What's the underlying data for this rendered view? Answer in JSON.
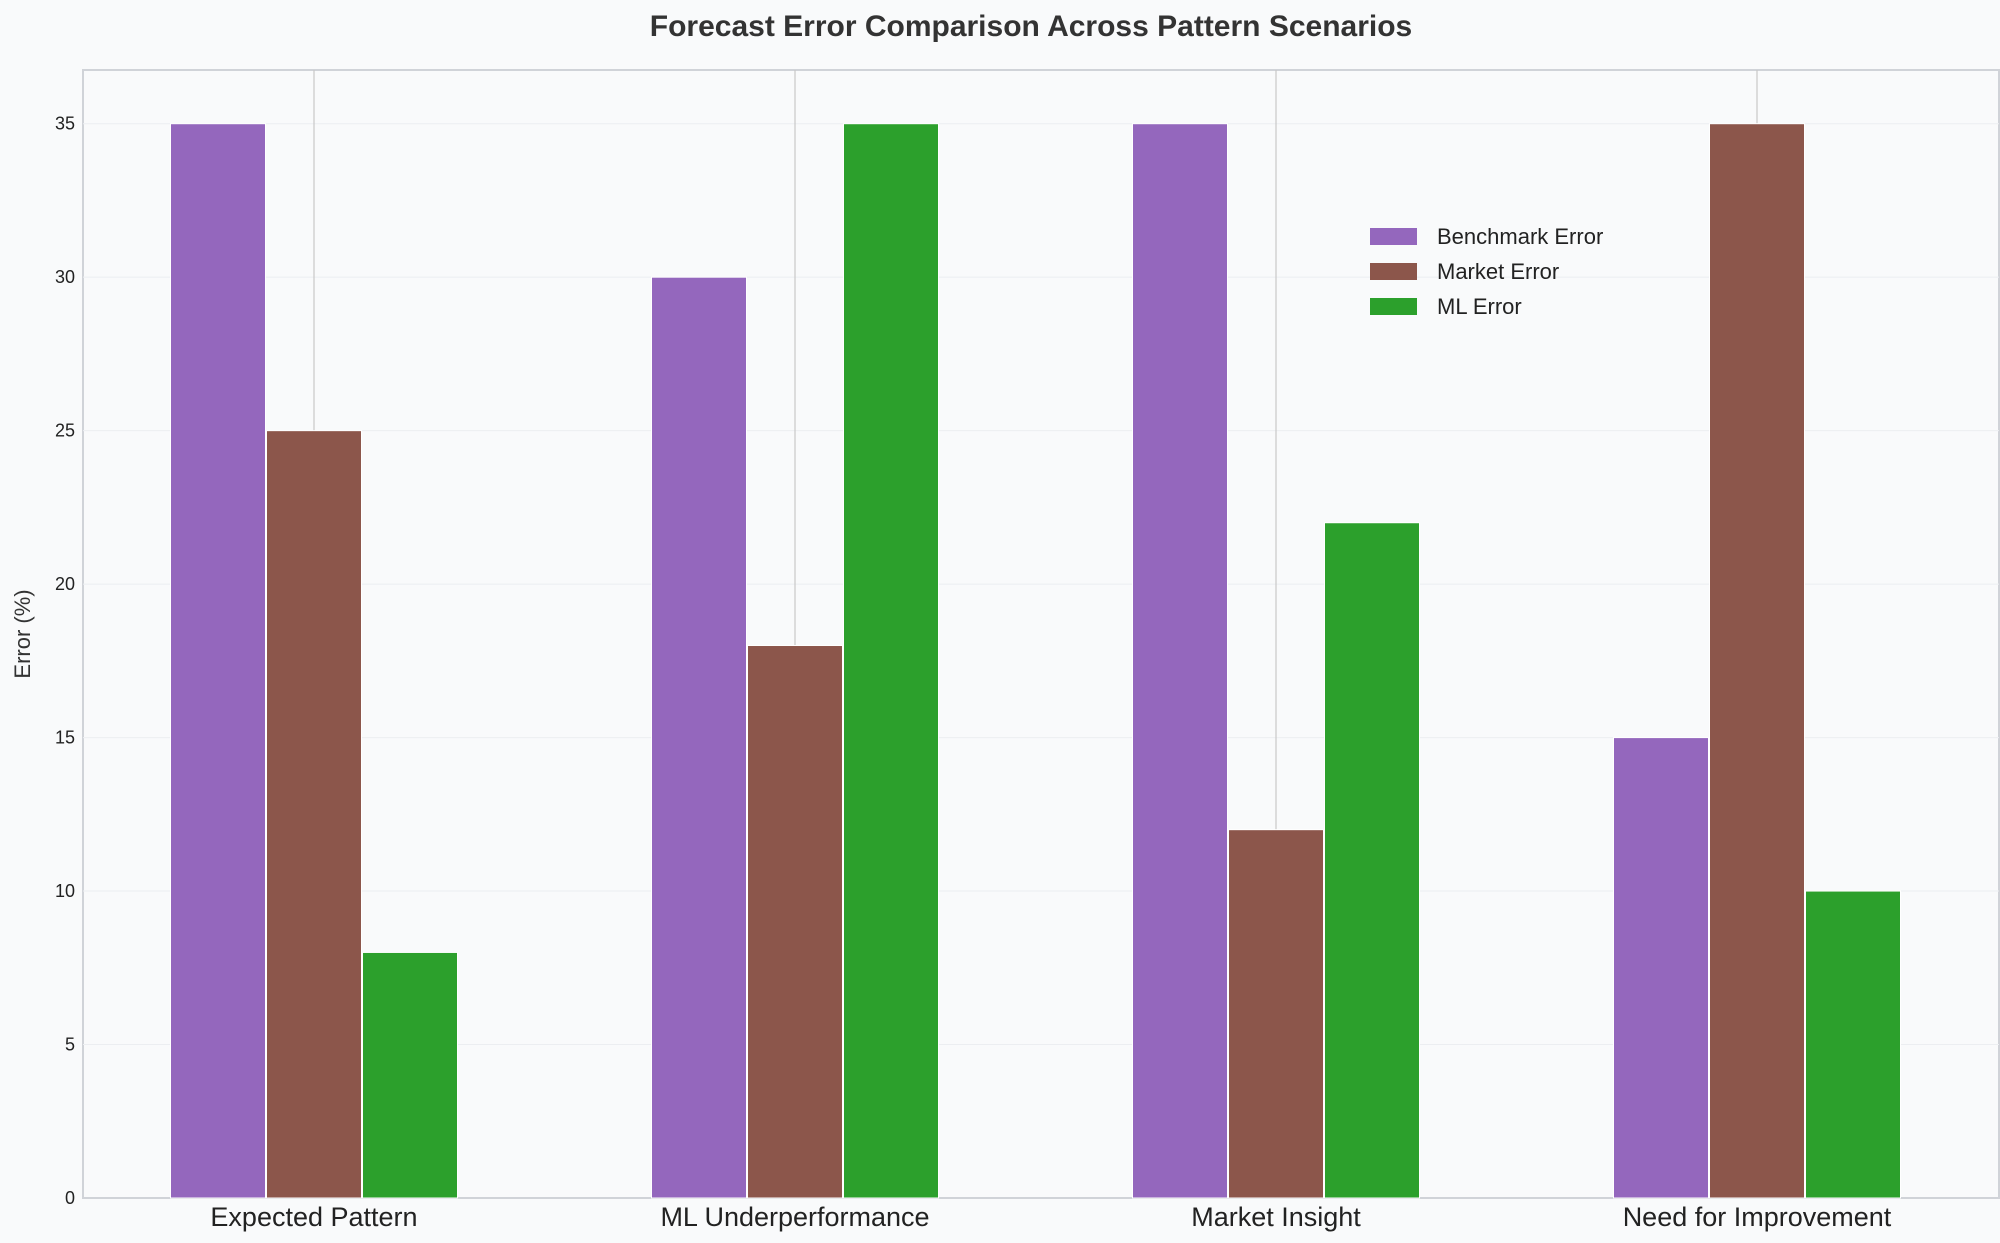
{
  "chart_data": {
    "type": "bar",
    "title": "Forecast Error Comparison Across Pattern Scenarios",
    "xlabel": "",
    "ylabel": "Error (%)",
    "categories": [
      "Expected Pattern",
      "ML Underperformance",
      "Market Insight",
      "Need for Improvement"
    ],
    "series": [
      {
        "name": "Benchmark Error",
        "values": [
          35,
          30,
          35,
          15
        ],
        "color": "#9467bd"
      },
      {
        "name": "Market Error",
        "values": [
          25,
          18,
          12,
          35
        ],
        "color": "#8c564b"
      },
      {
        "name": "ML Error",
        "values": [
          8,
          35,
          22,
          10
        ],
        "color": "#2ca02c"
      }
    ],
    "ylim": [
      0,
      36.75
    ],
    "yticks": [
      0,
      5,
      10,
      15,
      20,
      25,
      30,
      35
    ],
    "grid": true,
    "legend_position": "upper-right"
  },
  "colors": {
    "background": "#f9fafb",
    "plot_background": "#f9fafb",
    "spine": "#d0d3d8",
    "grid": "#eceef1",
    "category_separator": "#c8c8c8"
  }
}
